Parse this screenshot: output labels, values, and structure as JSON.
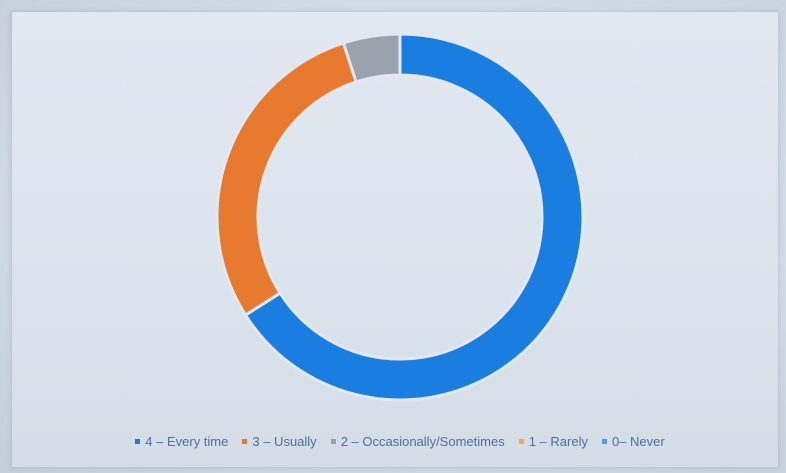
{
  "chart_data": {
    "type": "pie",
    "variant": "donut",
    "title": "",
    "categories": [
      "4 – Every time",
      "3 – Usually",
      "2 – Occasionally/Sometimes",
      "1 – Rarely",
      "0– Never"
    ],
    "values": [
      66,
      29,
      5,
      0,
      0
    ],
    "unit": "percent (estimated)",
    "colors": [
      "#1a7ee0",
      "#e87a2f",
      "#9aa3ad",
      "#e8b43a",
      "#4b9fe6"
    ],
    "legend_position": "bottom",
    "start_angle": "12 o'clock, clockwise"
  }
}
